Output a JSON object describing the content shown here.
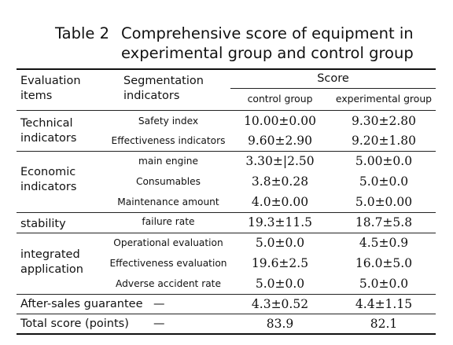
{
  "title": {
    "number": "Table 2",
    "text": "Comprehensive score of equipment in experimental group and control group"
  },
  "header": {
    "col_items": "Evaluation items",
    "col_indicators": "Segmentation indicators",
    "score": "Score",
    "control": "control group",
    "experimental": "experimental group"
  },
  "groups": [
    "Technical indicators",
    "Economic indicators",
    "stability",
    "integrated application",
    "After-sales guarantee",
    "Total score (points)"
  ],
  "rows": [
    {
      "indicator": "Safety index",
      "control": "10.00±0.00",
      "experimental": "9.30±2.80"
    },
    {
      "indicator": "Effectiveness indicators",
      "control": "9.60±2.90",
      "experimental": "9.20±1.80"
    },
    {
      "indicator": "main engine",
      "control": "3.30±|2.50",
      "experimental": "5.00±0.0"
    },
    {
      "indicator": "Consumables",
      "control": "3.8±0.28",
      "experimental": "5.0±0.0"
    },
    {
      "indicator": "Maintenance amount",
      "control": "4.0±0.00",
      "experimental": "5.0±0.00"
    },
    {
      "indicator": "failure rate",
      "control": "19.3±11.5",
      "experimental": "18.7±5.8"
    },
    {
      "indicator": "Operational evaluation",
      "control": "5.0±0.0",
      "experimental": "4.5±0.9"
    },
    {
      "indicator": "Effectiveness evaluation",
      "control": "19.6±2.5",
      "experimental": "16.0±5.0"
    },
    {
      "indicator": "Adverse accident rate",
      "control": "5.0±0.0",
      "experimental": "5.0±0.0"
    },
    {
      "indicator": "—",
      "control": "4.3±0.52",
      "experimental": "4.4±1.15"
    },
    {
      "indicator": "—",
      "control": "83.9",
      "experimental": "82.1"
    }
  ]
}
